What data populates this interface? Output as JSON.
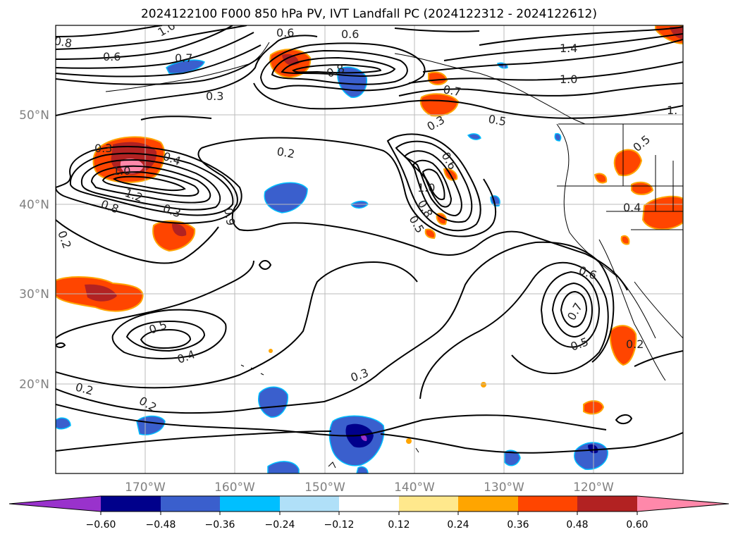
{
  "title": "2024122100 F000 850 hPa PV, IVT Landfall PC (2024122312 - 2024122612)",
  "lon_ticks": [
    "170°W",
    "160°W",
    "150°W",
    "140°W",
    "130°W",
    "120°W"
  ],
  "lat_ticks": [
    "50°N",
    "40°N",
    "30°N",
    "20°N"
  ],
  "colorbar": {
    "tick_labels": [
      "−0.60",
      "−0.48",
      "−0.36",
      "−0.24",
      "−0.12",
      "0.12",
      "0.24",
      "0.36",
      "0.48",
      "0.60"
    ],
    "colors": [
      "#9932cc",
      "#00008b",
      "#3a5fcd",
      "#00bfff",
      "#b0e0f8",
      "#ffffff",
      "#ffe88c",
      "#ffa500",
      "#ff4500",
      "#b22222",
      "#ff88aa"
    ]
  },
  "contour_labels": [
    "0.8",
    "1.0",
    "0.7",
    "0.6",
    "0.6",
    "0.6",
    "0.8",
    "1.4",
    "1.0",
    "0.3",
    "0.7",
    "0.5",
    "0.3",
    "0.3",
    "0.2",
    "0.4",
    "0.6",
    "1.0",
    "1.2",
    "0.8",
    "0.3",
    "0.9",
    "0.8",
    "0.5",
    "1.0",
    "0.2",
    "0.4",
    "0.5",
    "0.4",
    "0.3",
    "0.2",
    "0.2",
    "0.6",
    "0.7",
    "0.5",
    "0.2",
    "1.",
    "0.5"
  ],
  "chart_data": {
    "type": "map",
    "title": "2024122100 F000 850 hPa PV, IVT Landfall PC (2024122312 - 2024122612)",
    "extent_lon": [
      -180,
      -110
    ],
    "extent_lat": [
      10,
      60
    ],
    "filled_field_levels": [
      -0.6,
      -0.48,
      -0.36,
      -0.24,
      -0.12,
      0.12,
      0.24,
      0.36,
      0.48,
      0.6
    ],
    "contour_levels_shown": [
      0.2,
      0.3,
      0.4,
      0.5,
      0.6,
      0.7,
      0.8,
      0.9,
      1.0,
      1.2,
      1.4
    ],
    "grid": true
  }
}
